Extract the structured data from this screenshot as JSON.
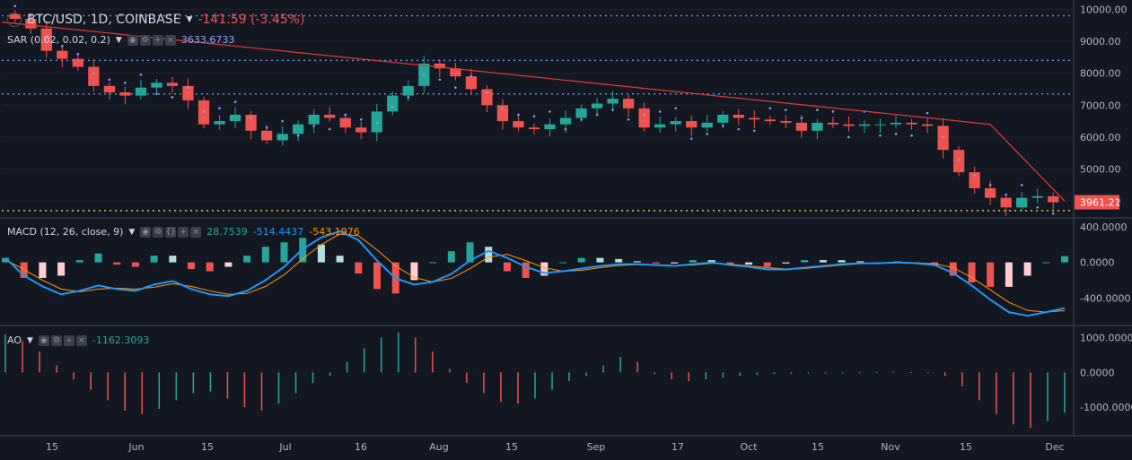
{
  "header": {
    "symbol": "BTC/USD, 1D, COINBASE",
    "change": "-141.59 (-3.45%)"
  },
  "sar": {
    "label": "SAR (0.02, 0.02, 0.2)",
    "value": "3633.6733"
  },
  "macd": {
    "label": "MACD (12, 26, close, 9)",
    "v1": "28.7539",
    "v2": "-514.4437",
    "v3": "-543.1976"
  },
  "ao": {
    "label": "AO",
    "value": "-1162.3093"
  },
  "last_price": "3961.21",
  "colors": {
    "up": "#26a69a",
    "down": "#ef5350",
    "trend": "#e53935",
    "sar": "#7e9cf5",
    "macd": "#2196f3",
    "signal": "#ff9800",
    "hline_blue": "#5e8de0",
    "hline_yellow": "#e6c229"
  },
  "chart_data": [
    {
      "type": "candlestick",
      "title": "BTC/USD, 1D, COINBASE",
      "x_ticks": [
        "15",
        "Jun",
        "15",
        "Jul",
        "16",
        "Aug",
        "15",
        "Sep",
        "17",
        "Oct",
        "15",
        "Nov",
        "15",
        "Dec"
      ],
      "y_ticks": [
        "4000.00",
        "5000.00",
        "6000.00",
        "7000.00",
        "8000.00",
        "9000.00",
        "10000.00"
      ],
      "ylim": [
        3500,
        10150
      ],
      "horizontal_levels": [
        9800,
        8400,
        7350,
        3700
      ],
      "trendline": [
        [
          0,
          9600
        ],
        [
          0.38,
          8300
        ],
        [
          0.93,
          6400
        ],
        [
          1.0,
          4000
        ]
      ],
      "closes": [
        9700,
        9400,
        8700,
        8450,
        8200,
        7600,
        7400,
        7300,
        7550,
        7700,
        7600,
        7150,
        6400,
        6500,
        6700,
        6200,
        5900,
        6100,
        6400,
        6700,
        6600,
        6300,
        6150,
        6800,
        7300,
        7600,
        8300,
        8150,
        7900,
        7500,
        7000,
        6500,
        6300,
        6250,
        6400,
        6600,
        6900,
        7050,
        7200,
        6900,
        6300,
        6400,
        6500,
        6300,
        6450,
        6700,
        6600,
        6550,
        6500,
        6450,
        6200,
        6450,
        6400,
        6350,
        6400,
        6400,
        6450,
        6400,
        6350,
        5600,
        4900,
        4400,
        4100,
        3800,
        4100,
        4150,
        3961
      ]
    },
    {
      "type": "line",
      "name": "MACD (12, 26, close, 9)",
      "y_ticks": [
        "400.0000",
        "0.0000",
        "-400.0000"
      ],
      "ylim": [
        -700,
        480
      ],
      "series": [
        {
          "name": "macd",
          "values": [
            50,
            -150,
            -270,
            -360,
            -320,
            -260,
            -300,
            -320,
            -250,
            -210,
            -300,
            -360,
            -380,
            -320,
            -200,
            -50,
            150,
            280,
            350,
            250,
            20,
            -180,
            -250,
            -220,
            -130,
            20,
            130,
            50,
            -50,
            -120,
            -100,
            -70,
            -40,
            -20,
            -20,
            -30,
            -40,
            -20,
            0,
            -30,
            -50,
            -80,
            -80,
            -60,
            -40,
            -20,
            -10,
            -10,
            0,
            -10,
            -30,
            -120,
            -260,
            -420,
            -560,
            -600,
            -560,
            -515
          ]
        },
        {
          "name": "signal",
          "values": [
            30,
            -80,
            -200,
            -300,
            -330,
            -300,
            -290,
            -300,
            -280,
            -240,
            -270,
            -320,
            -360,
            -350,
            -270,
            -140,
            40,
            200,
            320,
            300,
            140,
            -40,
            -170,
            -220,
            -180,
            -70,
            60,
            90,
            20,
            -60,
            -100,
            -90,
            -60,
            -35,
            -25,
            -25,
            -35,
            -30,
            -10,
            -20,
            -40,
            -60,
            -75,
            -70,
            -50,
            -30,
            -15,
            -10,
            -5,
            -5,
            -15,
            -60,
            -170,
            -310,
            -450,
            -540,
            -560,
            -543
          ]
        }
      ]
    },
    {
      "type": "bar",
      "name": "AO",
      "y_ticks": [
        "1000.0000",
        "0.0000",
        "-1000.0000"
      ],
      "ylim": [
        -1800,
        1300
      ],
      "values": [
        1100,
        900,
        600,
        200,
        -200,
        -500,
        -800,
        -1100,
        -1200,
        -1050,
        -800,
        -600,
        -550,
        -750,
        -1000,
        -1100,
        -900,
        -600,
        -300,
        -100,
        300,
        700,
        1000,
        1150,
        1000,
        600,
        100,
        -300,
        -600,
        -850,
        -900,
        -750,
        -500,
        -250,
        -100,
        200,
        450,
        300,
        -50,
        -200,
        -250,
        -200,
        -150,
        -100,
        -80,
        -50,
        -40,
        -30,
        -30,
        -20,
        -10,
        10,
        20,
        10,
        -20,
        -100,
        -400,
        -800,
        -1200,
        -1500,
        -1600,
        -1400,
        -1162
      ]
    }
  ]
}
